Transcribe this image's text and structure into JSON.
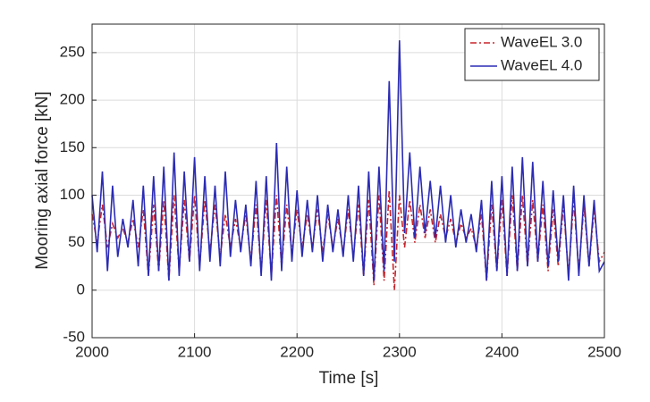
{
  "chart_data": {
    "type": "line",
    "xlabel": "Time [s]",
    "ylabel": "Mooring axial force [kN]",
    "xlim": [
      2000,
      2500
    ],
    "xticks": [
      2000,
      2100,
      2200,
      2300,
      2400,
      2500
    ],
    "ylim": [
      -50,
      280
    ],
    "yticks": [
      -50,
      0,
      50,
      100,
      150,
      200,
      250
    ],
    "grid": true,
    "legend": "upper right",
    "x": [
      2000,
      2005,
      2010,
      2015,
      2020,
      2025,
      2030,
      2035,
      2040,
      2045,
      2050,
      2055,
      2060,
      2065,
      2070,
      2075,
      2080,
      2085,
      2090,
      2095,
      2100,
      2105,
      2110,
      2115,
      2120,
      2125,
      2130,
      2135,
      2140,
      2145,
      2150,
      2155,
      2160,
      2165,
      2170,
      2175,
      2180,
      2185,
      2190,
      2195,
      2200,
      2205,
      2210,
      2215,
      2220,
      2225,
      2230,
      2235,
      2240,
      2245,
      2250,
      2255,
      2260,
      2265,
      2270,
      2275,
      2280,
      2285,
      2290,
      2295,
      2300,
      2305,
      2310,
      2315,
      2320,
      2325,
      2330,
      2335,
      2340,
      2345,
      2350,
      2355,
      2360,
      2365,
      2370,
      2375,
      2380,
      2385,
      2390,
      2395,
      2400,
      2405,
      2410,
      2415,
      2420,
      2425,
      2430,
      2435,
      2440,
      2445,
      2450,
      2455,
      2460,
      2465,
      2470,
      2475,
      2480,
      2485,
      2490,
      2495,
      2500
    ],
    "series": [
      {
        "name": "WaveEL 3.0",
        "color": "#c8252c",
        "dash": "dashdot",
        "values": [
          80,
          50,
          90,
          45,
          70,
          55,
          65,
          50,
          75,
          45,
          85,
          15,
          90,
          20,
          95,
          10,
          100,
          20,
          95,
          30,
          100,
          25,
          95,
          40,
          90,
          35,
          80,
          45,
          75,
          45,
          80,
          30,
          90,
          20,
          95,
          15,
          100,
          25,
          90,
          40,
          85,
          45,
          80,
          45,
          85,
          40,
          80,
          45,
          75,
          40,
          85,
          35,
          90,
          15,
          95,
          5,
          100,
          10,
          105,
          0,
          100,
          45,
          95,
          50,
          90,
          55,
          85,
          50,
          80,
          55,
          75,
          50,
          70,
          55,
          65,
          45,
          80,
          10,
          90,
          20,
          95,
          15,
          100,
          20,
          100,
          25,
          95,
          30,
          90,
          20,
          85,
          25,
          90,
          15,
          95,
          20,
          90,
          25,
          85,
          30,
          40
        ]
      },
      {
        "name": "WaveEL 4.0",
        "color": "#2b2bb5",
        "dash": "solid",
        "values": [
          100,
          40,
          125,
          20,
          110,
          35,
          75,
          45,
          95,
          25,
          110,
          15,
          120,
          20,
          130,
          10,
          145,
          15,
          125,
          30,
          140,
          20,
          120,
          30,
          110,
          25,
          125,
          35,
          95,
          40,
          90,
          25,
          115,
          15,
          120,
          10,
          155,
          20,
          130,
          30,
          105,
          35,
          95,
          40,
          100,
          30,
          90,
          40,
          85,
          35,
          100,
          30,
          110,
          15,
          125,
          10,
          130,
          20,
          220,
          30,
          263,
          60,
          145,
          55,
          130,
          60,
          115,
          55,
          110,
          50,
          100,
          45,
          85,
          50,
          80,
          40,
          95,
          10,
          115,
          20,
          120,
          15,
          130,
          20,
          140,
          25,
          135,
          30,
          115,
          25,
          105,
          30,
          100,
          10,
          110,
          15,
          100,
          25,
          95,
          20,
          30
        ]
      }
    ]
  }
}
